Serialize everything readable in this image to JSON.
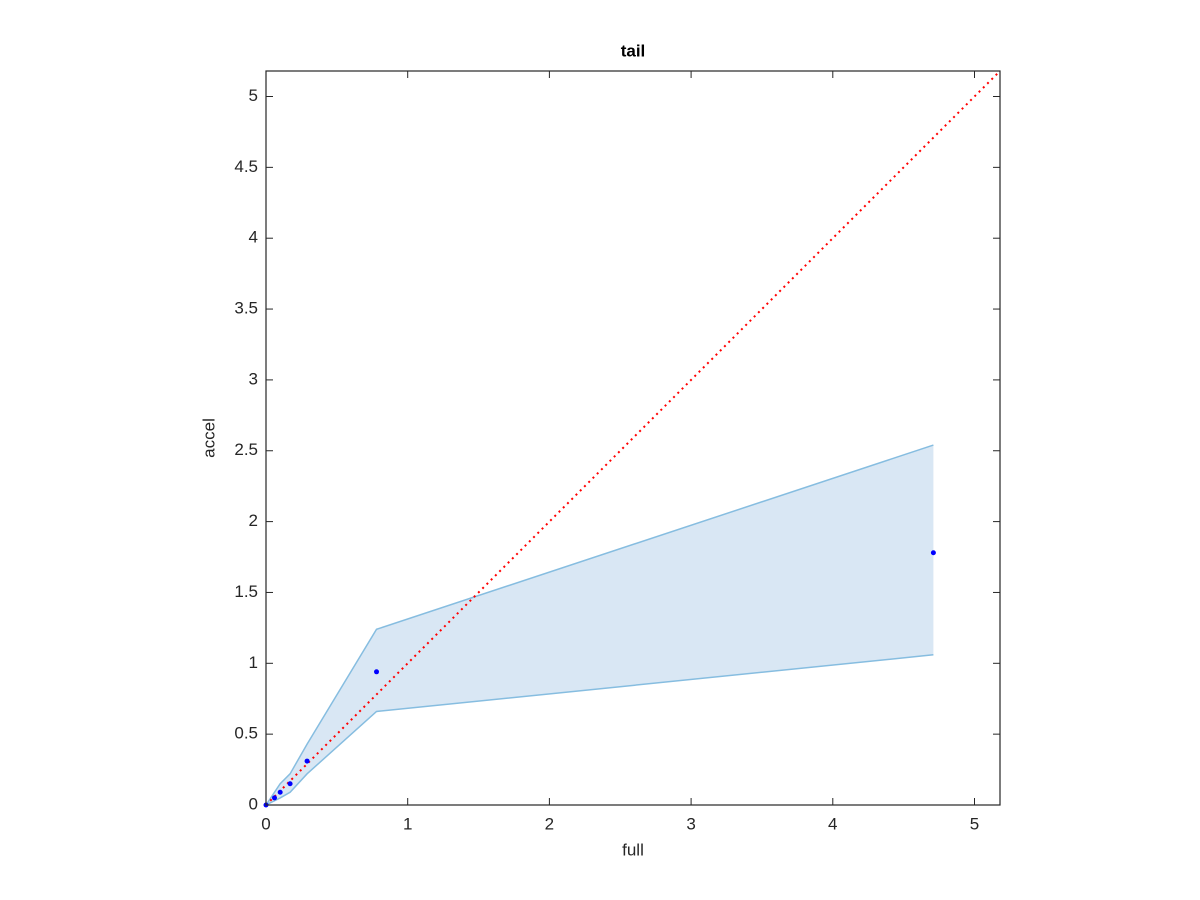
{
  "chart_data": {
    "type": "scatter",
    "title": "tail",
    "x_label": "full",
    "y_label": "accel",
    "xlim": [
      0,
      5.18
    ],
    "ylim": [
      0,
      5.18
    ],
    "xticks": [
      0,
      1,
      2,
      3,
      4,
      5
    ],
    "yticks": [
      0,
      0.5,
      1,
      1.5,
      2,
      2.5,
      3,
      3.5,
      4,
      4.5,
      5
    ],
    "series": [
      {
        "color": "#0000ff",
        "x": [
          0,
          0.06,
          0.1,
          0.17,
          0.29,
          0.78,
          4.71
        ],
        "values": [
          0,
          0.05,
          0.09,
          0.15,
          0.31,
          0.94,
          1.78
        ]
      }
    ],
    "band": {
      "color": "#d9e7f4",
      "edge_color": "#86bde0",
      "x": [
        0,
        0.1,
        0.17,
        0.29,
        0.78,
        4.71
      ],
      "upper": [
        0,
        0.15,
        0.22,
        0.43,
        1.24,
        2.54
      ],
      "lower": [
        0,
        0.05,
        0.09,
        0.22,
        0.66,
        1.06
      ]
    },
    "reference_line": {
      "color": "#ff0000",
      "x": [
        0,
        5.18
      ],
      "values": [
        0,
        5.18
      ]
    }
  }
}
